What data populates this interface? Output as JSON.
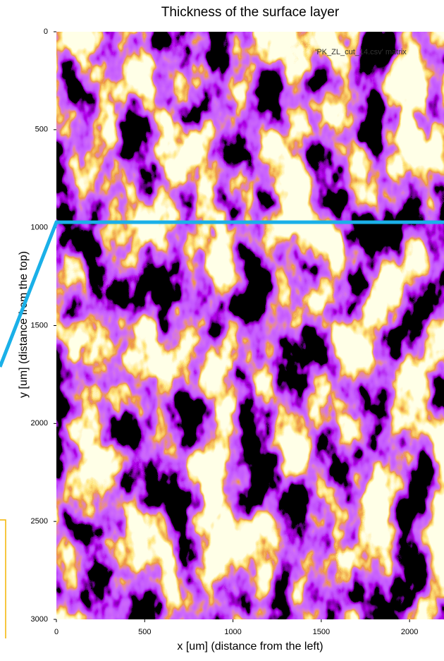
{
  "chart_data": {
    "type": "heatmap",
    "title": "Thickness of the surface layer",
    "xlabel": "x [um] (distance from the left)",
    "ylabel": "y [um] (distance from the top)",
    "annotation": "'PK_ZL_cut_14.csv' matrix",
    "xlim": [
      0,
      2195
    ],
    "ylim": [
      0,
      3000
    ],
    "y_reversed": true,
    "xticks": [
      0,
      500,
      1000,
      1500,
      2000
    ],
    "yticks": [
      0,
      500,
      1000,
      1500,
      2000,
      2500,
      3000
    ]
  }
}
